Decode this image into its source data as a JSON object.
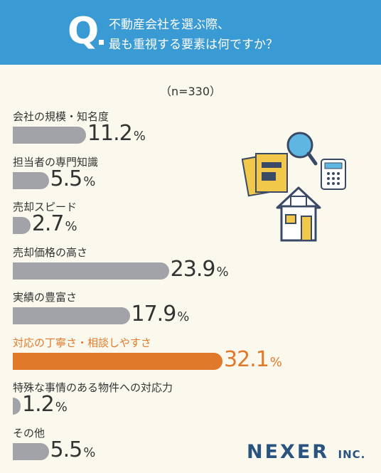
{
  "header": {
    "q_letter": "Q",
    "question_line1": "不動産会社を選ぶ際、",
    "question_line2": "最も重視する要素は何ですか？"
  },
  "sample": "（n=330）",
  "colors": {
    "header": "#3a9ad4",
    "bar": "#a2a3a8",
    "highlight": "#e07a2a",
    "logo": "#2a5480"
  },
  "chart_data": {
    "type": "bar",
    "orientation": "horizontal",
    "categories": [
      "会社の規模・知名度",
      "担当者の専門知識",
      "売却スピード",
      "売却価格の高さ",
      "実績の豊富さ",
      "対応の丁寧さ・相談しやすさ",
      "特殊な事情のある物件への対応力",
      "その他"
    ],
    "values": [
      11.2,
      5.5,
      2.7,
      23.9,
      17.9,
      32.1,
      1.2,
      5.5
    ],
    "value_labels": [
      "11.2",
      "5.5",
      "2.7",
      "23.9",
      "17.9",
      "32.1",
      "1.2",
      "5.5"
    ],
    "unit": "%",
    "highlight_index": 5
  },
  "logo": {
    "main": "NEXER",
    "suffix": "INC."
  }
}
